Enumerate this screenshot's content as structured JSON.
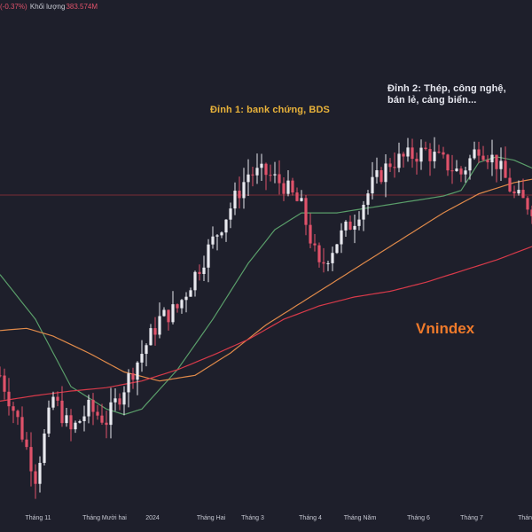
{
  "header": {
    "change_pct": "-0.37%)",
    "volume_label": "Khối lượng",
    "volume_value": "383.574M"
  },
  "annotations": {
    "peak1": "Đỉnh 1: bank chứng, BDS",
    "peak2_line1": "Đỉnh 2: Thép, công nghệ,",
    "peak2_line2": "bán lẻ, cảng biển..."
  },
  "chart_label": "Vnindex",
  "colors": {
    "background": "#1e1f2b",
    "up_candle": "#e8e9ef",
    "down_candle": "#e0526a",
    "ma_short": "#5a9e6a",
    "ma_mid": "#e08a4a",
    "ma_long": "#d83a4a",
    "ref_line": "#7a2e36",
    "annotation_peak1": "#e8b23a",
    "label_vnindex": "#f07a2b"
  },
  "chart_data": {
    "type": "candlestick",
    "title": "Vnindex",
    "x_ticks": [
      "Tháng 11",
      "Tháng Mười hai",
      "2024",
      "Tháng Hai",
      "Tháng 3",
      "Tháng 4",
      "Tháng Năm",
      "Tháng 6",
      "Tháng 7",
      "Tháng"
    ],
    "y_axis": "hidden",
    "grid": false,
    "series": [
      {
        "name": "",
        "kind": "price",
        "trend": [
          [
            0,
            1080
          ],
          [
            2,
            1040
          ],
          [
            4,
            990
          ],
          [
            6,
            1060
          ],
          [
            8,
            1030
          ],
          [
            10,
            1050
          ],
          [
            12,
            1040
          ],
          [
            14,
            1070
          ],
          [
            16,
            1100
          ],
          [
            18,
            1130
          ],
          [
            20,
            1140
          ],
          [
            22,
            1170
          ],
          [
            24,
            1200
          ],
          [
            26,
            1230
          ],
          [
            28,
            1260
          ],
          [
            30,
            1260
          ],
          [
            32,
            1250
          ],
          [
            34,
            1230
          ],
          [
            36,
            1175
          ],
          [
            38,
            1200
          ],
          [
            40,
            1220
          ],
          [
            42,
            1250
          ],
          [
            44,
            1270
          ],
          [
            46,
            1275
          ],
          [
            48,
            1280
          ],
          [
            50,
            1270
          ],
          [
            52,
            1260
          ],
          [
            54,
            1285
          ],
          [
            56,
            1270
          ],
          [
            58,
            1240
          ],
          [
            60,
            1230
          ]
        ]
      },
      {
        "name": "",
        "kind": "ma_short",
        "values": [
          [
            0,
            1170
          ],
          [
            4,
            1130
          ],
          [
            8,
            1070
          ],
          [
            12,
            1050
          ],
          [
            14,
            1045
          ],
          [
            16,
            1050
          ],
          [
            20,
            1085
          ],
          [
            24,
            1130
          ],
          [
            28,
            1180
          ],
          [
            31,
            1210
          ],
          [
            34,
            1225
          ],
          [
            38,
            1225
          ],
          [
            42,
            1230
          ],
          [
            46,
            1235
          ],
          [
            50,
            1240
          ],
          [
            52,
            1245
          ],
          [
            54,
            1270
          ],
          [
            56,
            1275
          ],
          [
            58,
            1272
          ],
          [
            60,
            1265
          ]
        ]
      },
      {
        "name": "",
        "kind": "ma_mid",
        "values": [
          [
            0,
            1120
          ],
          [
            3,
            1122
          ],
          [
            6,
            1115
          ],
          [
            10,
            1100
          ],
          [
            14,
            1083
          ],
          [
            18,
            1075
          ],
          [
            22,
            1080
          ],
          [
            26,
            1100
          ],
          [
            30,
            1125
          ],
          [
            34,
            1145
          ],
          [
            38,
            1165
          ],
          [
            42,
            1185
          ],
          [
            46,
            1205
          ],
          [
            50,
            1225
          ],
          [
            54,
            1242
          ],
          [
            58,
            1252
          ],
          [
            60,
            1255
          ]
        ]
      },
      {
        "name": "",
        "kind": "ma_long",
        "values": [
          [
            0,
            1057
          ],
          [
            4,
            1062
          ],
          [
            8,
            1066
          ],
          [
            12,
            1069
          ],
          [
            16,
            1075
          ],
          [
            20,
            1085
          ],
          [
            24,
            1098
          ],
          [
            28,
            1112
          ],
          [
            32,
            1130
          ],
          [
            36,
            1142
          ],
          [
            40,
            1150
          ],
          [
            44,
            1155
          ],
          [
            48,
            1163
          ],
          [
            52,
            1173
          ],
          [
            56,
            1183
          ],
          [
            60,
            1195
          ]
        ]
      }
    ]
  }
}
